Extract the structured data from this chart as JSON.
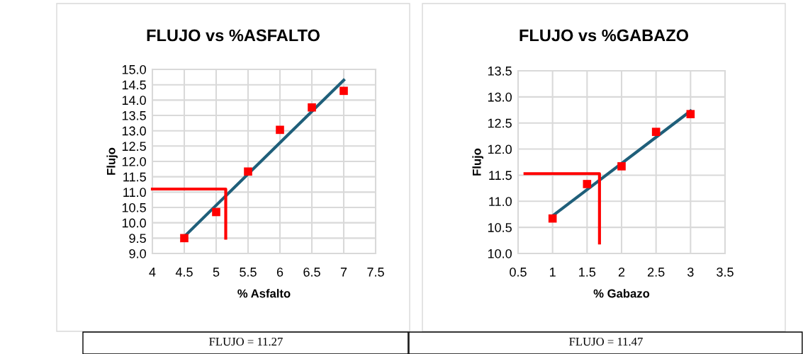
{
  "chart_data": [
    {
      "type": "scatter",
      "title": "FLUJO vs %ASFALTO",
      "xlabel": "% Asfalto",
      "ylabel": "Flujo",
      "xlim": [
        4,
        7.5
      ],
      "xticks": [
        4,
        4.5,
        5,
        5.5,
        6,
        6.5,
        7,
        7.5
      ],
      "ylim": [
        9.0,
        15.0
      ],
      "yticks": [
        {
          "value": 9,
          "label": "9.0"
        },
        {
          "value": 9.5,
          "label": "9.5"
        },
        {
          "value": 10,
          "label": "10.0"
        },
        {
          "value": 10.5,
          "label": "10.5"
        },
        {
          "value": 11,
          "label": "11.0"
        },
        {
          "value": 11.5,
          "label": "11.5"
        },
        {
          "value": 12,
          "label": "12.0"
        },
        {
          "value": 12.5,
          "label": "12.5"
        },
        {
          "value": 13,
          "label": "13.0"
        },
        {
          "value": 13.5,
          "label": "13.5"
        },
        {
          "value": 14,
          "label": "14.0"
        },
        {
          "value": 14.5,
          "label": "14.5"
        },
        {
          "value": 15,
          "label": "15.0"
        }
      ],
      "grid": true,
      "legend": false,
      "series": [
        {
          "type": "line",
          "color": "#1f5f7a",
          "x": [
            4.5,
            7
          ],
          "values": [
            9.55,
            14.65
          ],
          "marker": "none"
        },
        {
          "type": "line",
          "color": "#ff0000",
          "x": [
            4,
            5.15,
            5.15
          ],
          "values": [
            11.1,
            11.1,
            9.5
          ],
          "marker": "none"
        },
        {
          "color": "#ff0000",
          "x": [
            4.5,
            5,
            5.5,
            6,
            6.5,
            7
          ],
          "values": [
            9.5,
            10.35,
            11.67,
            13.03,
            13.76,
            14.3
          ],
          "marker": "square"
        }
      ],
      "annotations": [
        "FLUJO = 11.27"
      ]
    },
    {
      "type": "scatter",
      "title": "FLUJO vs %GABAZO",
      "xlabel": "% Gabazo",
      "ylabel": "Flujo",
      "xlim": [
        0.5,
        3.5
      ],
      "xticks": [
        0.5,
        1,
        1.5,
        2,
        2.5,
        3,
        3.5
      ],
      "ylim": [
        10.0,
        13.5
      ],
      "yticks": [
        {
          "value": 10,
          "label": "10.0"
        },
        {
          "value": 10.5,
          "label": "10.5"
        },
        {
          "value": 11,
          "label": "11.0"
        },
        {
          "value": 11.5,
          "label": "11.5"
        },
        {
          "value": 12,
          "label": "12.0"
        },
        {
          "value": 12.5,
          "label": "12.5"
        },
        {
          "value": 13,
          "label": "13.0"
        },
        {
          "value": 13.5,
          "label": "13.5"
        }
      ],
      "grid": true,
      "legend": false,
      "series": [
        {
          "type": "line",
          "color": "#1f5f7a",
          "x": [
            1,
            3
          ],
          "values": [
            10.72,
            12.73
          ],
          "marker": "none"
        },
        {
          "type": "line",
          "color": "#ff0000",
          "x": [
            0.6,
            1.68,
            1.68
          ],
          "values": [
            11.53,
            11.53,
            10.2
          ],
          "marker": "none"
        },
        {
          "color": "#ff0000",
          "x": [
            1,
            1.5,
            2,
            2.5,
            3
          ],
          "values": [
            10.67,
            11.33,
            11.67,
            12.33,
            12.67
          ],
          "marker": "square"
        }
      ],
      "annotations": [
        "FLUJO = 11.47"
      ]
    }
  ]
}
